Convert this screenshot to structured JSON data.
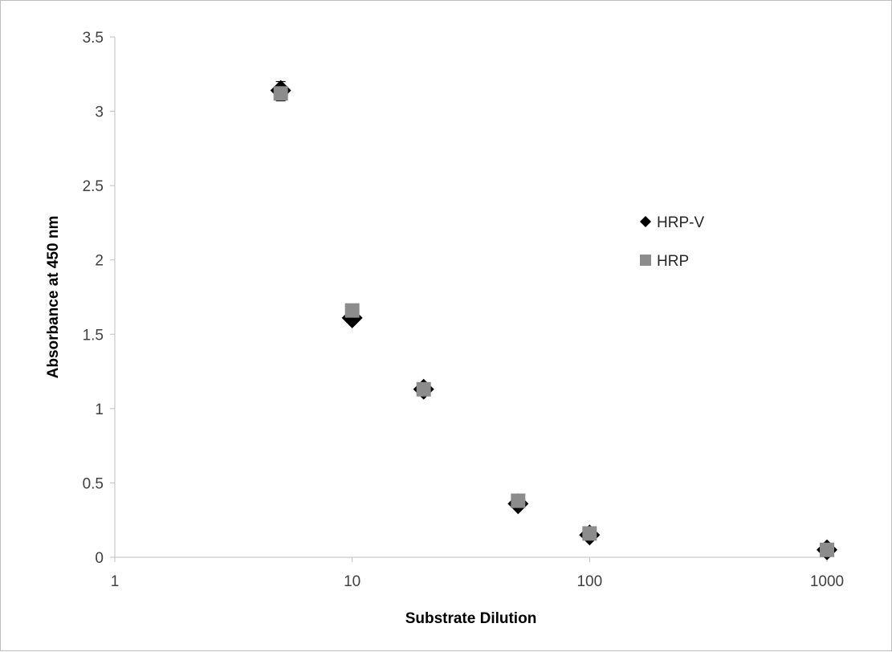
{
  "chart_data": {
    "type": "scatter",
    "title": "",
    "xlabel": "Substrate Dilution",
    "ylabel": "Absorbance at 450 nm",
    "x_scale": "log",
    "xlim": [
      1,
      1000
    ],
    "ylim": [
      0,
      3.5
    ],
    "x_ticks": [
      1,
      10,
      100,
      1000
    ],
    "x_tick_labels": [
      "1",
      "10",
      "100",
      "1000"
    ],
    "y_ticks": [
      0,
      0.5,
      1,
      1.5,
      2,
      2.5,
      3,
      3.5
    ],
    "y_tick_labels": [
      "0",
      "0.5",
      "1",
      "1.5",
      "2",
      "2.5",
      "3",
      "3.5"
    ],
    "grid": false,
    "legend": "right",
    "series": [
      {
        "name": "HRP-V",
        "marker": "diamond",
        "color": "#000000",
        "x": [
          5,
          10,
          20,
          50,
          100,
          1000
        ],
        "y": [
          3.14,
          1.61,
          1.13,
          0.36,
          0.15,
          0.05
        ],
        "error": [
          0.06,
          0,
          0,
          0,
          0,
          0
        ]
      },
      {
        "name": "HRP",
        "marker": "square",
        "color": "#8c8c8c",
        "x": [
          5,
          10,
          20,
          50,
          100,
          1000
        ],
        "y": [
          3.12,
          1.66,
          1.13,
          0.38,
          0.16,
          0.05
        ],
        "error": [
          0.05,
          0,
          0,
          0,
          0,
          0
        ]
      }
    ]
  }
}
